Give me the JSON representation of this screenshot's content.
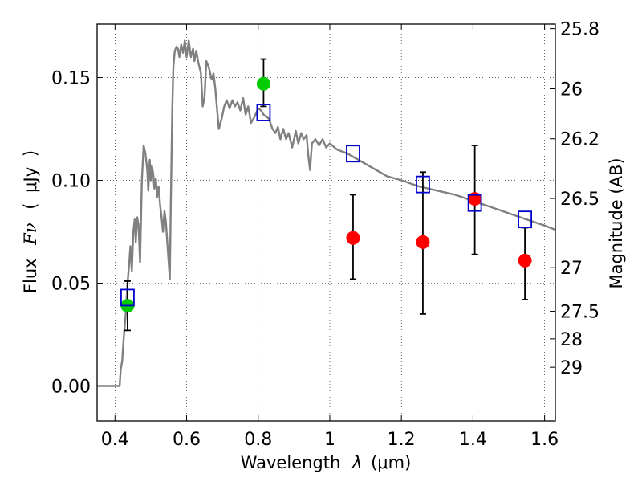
{
  "chart_data": {
    "type": "scatter",
    "xlabel_prefix": "Wavelength",
    "xlabel_symbol": "λ",
    "xlabel_unit": "(μm)",
    "ylabel_prefix": "Flux",
    "ylabel_symbol": "Fν",
    "ylabel_unit": "μJy",
    "y2label": "Magnitude (AB)",
    "xlim": [
      0.35,
      1.63
    ],
    "ylim": [
      -0.017,
      0.176
    ],
    "grid": true,
    "x_ticks": [
      {
        "value": 0.4,
        "label": "0.4"
      },
      {
        "value": 0.6,
        "label": "0.6"
      },
      {
        "value": 0.8,
        "label": "0.8"
      },
      {
        "value": 1.0,
        "label": "1"
      },
      {
        "value": 1.2,
        "label": "1.2"
      },
      {
        "value": 1.4,
        "label": "1.4"
      },
      {
        "value": 1.6,
        "label": "1.6"
      }
    ],
    "y_ticks": [
      {
        "value": 0.0,
        "label": "0.00"
      },
      {
        "value": 0.05,
        "label": "0.05"
      },
      {
        "value": 0.1,
        "label": "0.10"
      },
      {
        "value": 0.15,
        "label": "0.15"
      }
    ],
    "mag_ticks": [
      {
        "value": 25.8,
        "label": "25.8"
      },
      {
        "value": 26.0,
        "label": "26"
      },
      {
        "value": 26.2,
        "label": "26.2"
      },
      {
        "value": 26.5,
        "label": "26.5"
      },
      {
        "value": 27.0,
        "label": "27"
      },
      {
        "value": 27.5,
        "label": "27.5"
      },
      {
        "value": 28.0,
        "label": "28"
      },
      {
        "value": 29.0,
        "label": "29"
      }
    ],
    "colors": {
      "model": "#808080",
      "detection": "#00cc00",
      "measurement": "#ff0000",
      "model_box": "#0000cc",
      "errorbar": "#000000"
    },
    "model_spectrum": [
      [
        0.35,
        0.0
      ],
      [
        0.41,
        0.0
      ],
      [
        0.413,
        0.0
      ],
      [
        0.416,
        0.008
      ],
      [
        0.42,
        0.012
      ],
      [
        0.425,
        0.025
      ],
      [
        0.43,
        0.035
      ],
      [
        0.435,
        0.05
      ],
      [
        0.44,
        0.06
      ],
      [
        0.443,
        0.068
      ],
      [
        0.447,
        0.056
      ],
      [
        0.451,
        0.075
      ],
      [
        0.455,
        0.081
      ],
      [
        0.458,
        0.07
      ],
      [
        0.462,
        0.082
      ],
      [
        0.466,
        0.078
      ],
      [
        0.47,
        0.06
      ],
      [
        0.475,
        0.1
      ],
      [
        0.48,
        0.117
      ],
      [
        0.485,
        0.113
      ],
      [
        0.49,
        0.105
      ],
      [
        0.493,
        0.095
      ],
      [
        0.497,
        0.11
      ],
      [
        0.5,
        0.1
      ],
      [
        0.503,
        0.107
      ],
      [
        0.507,
        0.103
      ],
      [
        0.51,
        0.096
      ],
      [
        0.514,
        0.101
      ],
      [
        0.518,
        0.092
      ],
      [
        0.522,
        0.097
      ],
      [
        0.526,
        0.088
      ],
      [
        0.53,
        0.082
      ],
      [
        0.534,
        0.075
      ],
      [
        0.538,
        0.085
      ],
      [
        0.542,
        0.08
      ],
      [
        0.546,
        0.07
      ],
      [
        0.55,
        0.06
      ],
      [
        0.553,
        0.052
      ],
      [
        0.556,
        0.09
      ],
      [
        0.56,
        0.135
      ],
      [
        0.563,
        0.155
      ],
      [
        0.567,
        0.163
      ],
      [
        0.572,
        0.165
      ],
      [
        0.576,
        0.164
      ],
      [
        0.58,
        0.16
      ],
      [
        0.585,
        0.166
      ],
      [
        0.59,
        0.162
      ],
      [
        0.595,
        0.168
      ],
      [
        0.6,
        0.16
      ],
      [
        0.606,
        0.168
      ],
      [
        0.612,
        0.16
      ],
      [
        0.618,
        0.164
      ],
      [
        0.622,
        0.158
      ],
      [
        0.627,
        0.163
      ],
      [
        0.632,
        0.158
      ],
      [
        0.64,
        0.152
      ],
      [
        0.645,
        0.136
      ],
      [
        0.65,
        0.14
      ],
      [
        0.655,
        0.158
      ],
      [
        0.662,
        0.155
      ],
      [
        0.67,
        0.149
      ],
      [
        0.675,
        0.152
      ],
      [
        0.68,
        0.145
      ],
      [
        0.685,
        0.135
      ],
      [
        0.69,
        0.125
      ],
      [
        0.698,
        0.13
      ],
      [
        0.705,
        0.136
      ],
      [
        0.712,
        0.139
      ],
      [
        0.72,
        0.135
      ],
      [
        0.728,
        0.139
      ],
      [
        0.735,
        0.136
      ],
      [
        0.742,
        0.138
      ],
      [
        0.75,
        0.134
      ],
      [
        0.758,
        0.14
      ],
      [
        0.765,
        0.132
      ],
      [
        0.772,
        0.136
      ],
      [
        0.78,
        0.128
      ],
      [
        0.79,
        0.131
      ],
      [
        0.8,
        0.135
      ],
      [
        0.808,
        0.134
      ],
      [
        0.815,
        0.132
      ],
      [
        0.822,
        0.131
      ],
      [
        0.83,
        0.13
      ],
      [
        0.84,
        0.125
      ],
      [
        0.848,
        0.123
      ],
      [
        0.855,
        0.126
      ],
      [
        0.862,
        0.12
      ],
      [
        0.87,
        0.125
      ],
      [
        0.878,
        0.12
      ],
      [
        0.885,
        0.123
      ],
      [
        0.895,
        0.116
      ],
      [
        0.905,
        0.124
      ],
      [
        0.912,
        0.118
      ],
      [
        0.92,
        0.123
      ],
      [
        0.927,
        0.12
      ],
      [
        0.935,
        0.122
      ],
      [
        0.94,
        0.112
      ],
      [
        0.945,
        0.105
      ],
      [
        0.95,
        0.118
      ],
      [
        0.96,
        0.12
      ],
      [
        0.97,
        0.117
      ],
      [
        0.98,
        0.12
      ],
      [
        0.99,
        0.116
      ],
      [
        1.0,
        0.118
      ],
      [
        1.02,
        0.115
      ],
      [
        1.05,
        0.113
      ],
      [
        1.08,
        0.11
      ],
      [
        1.12,
        0.106
      ],
      [
        1.16,
        0.102
      ],
      [
        1.2,
        0.1
      ],
      [
        1.25,
        0.097
      ],
      [
        1.3,
        0.095
      ],
      [
        1.35,
        0.093
      ],
      [
        1.4,
        0.09
      ],
      [
        1.45,
        0.087
      ],
      [
        1.5,
        0.084
      ],
      [
        1.55,
        0.081
      ],
      [
        1.6,
        0.078
      ],
      [
        1.63,
        0.076
      ]
    ],
    "series": [
      {
        "role": "detection",
        "points": [
          {
            "x": 0.435,
            "y": 0.039,
            "yerr_low": 0.027,
            "yerr_high": 0.051
          },
          {
            "x": 0.815,
            "y": 0.147,
            "yerr_low": 0.136,
            "yerr_high": 0.159
          }
        ]
      },
      {
        "role": "measurement",
        "points": [
          {
            "x": 1.065,
            "y": 0.072,
            "yerr_low": 0.052,
            "yerr_high": 0.093
          },
          {
            "x": 1.26,
            "y": 0.07,
            "yerr_low": 0.035,
            "yerr_high": 0.104
          },
          {
            "x": 1.405,
            "y": 0.091,
            "yerr_low": 0.064,
            "yerr_high": 0.117
          },
          {
            "x": 1.545,
            "y": 0.061,
            "yerr_low": 0.042,
            "yerr_high": 0.077
          }
        ]
      },
      {
        "role": "model_box",
        "points": [
          {
            "x": 0.435,
            "y": 0.043
          },
          {
            "x": 0.815,
            "y": 0.133
          },
          {
            "x": 1.065,
            "y": 0.113
          },
          {
            "x": 1.26,
            "y": 0.098
          },
          {
            "x": 1.405,
            "y": 0.089
          },
          {
            "x": 1.545,
            "y": 0.081
          }
        ]
      }
    ]
  }
}
